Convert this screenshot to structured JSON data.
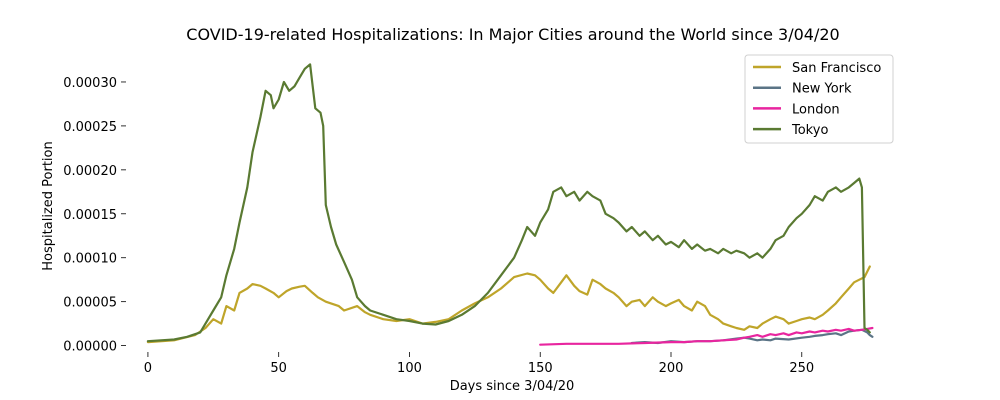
{
  "chart_data": {
    "type": "line",
    "title": "COVID-19-related Hospitalizations: In Major Cities around the World since 3/04/20",
    "xlabel": "Days since 3/04/20",
    "ylabel": "Hospitalized Portion",
    "xlim": [
      -8,
      278
    ],
    "ylim": [
      -5e-06,
      0.000325
    ],
    "xticks": [
      0,
      50,
      100,
      150,
      200,
      250
    ],
    "yticks": [
      0.0,
      5e-05,
      0.0001,
      0.00015,
      0.0002,
      0.00025,
      0.0003
    ],
    "ytick_labels": [
      "0.00000",
      "0.00005",
      "0.00010",
      "0.00015",
      "0.00020",
      "0.00025",
      "0.00030"
    ],
    "grid": false,
    "legend_position": "top-right",
    "series": [
      {
        "name": "San Francisco",
        "color": "#bfa52a",
        "points": [
          [
            0,
            4e-06
          ],
          [
            10,
            6e-06
          ],
          [
            18,
            1.2e-05
          ],
          [
            22,
            2e-05
          ],
          [
            25,
            3e-05
          ],
          [
            28,
            2.5e-05
          ],
          [
            30,
            4.5e-05
          ],
          [
            33,
            4e-05
          ],
          [
            35,
            6e-05
          ],
          [
            38,
            6.5e-05
          ],
          [
            40,
            7e-05
          ],
          [
            43,
            6.8e-05
          ],
          [
            45,
            6.5e-05
          ],
          [
            48,
            6e-05
          ],
          [
            50,
            5.5e-05
          ],
          [
            53,
            6.2e-05
          ],
          [
            55,
            6.5e-05
          ],
          [
            58,
            6.7e-05
          ],
          [
            60,
            6.8e-05
          ],
          [
            63,
            6e-05
          ],
          [
            65,
            5.5e-05
          ],
          [
            68,
            5e-05
          ],
          [
            70,
            4.8e-05
          ],
          [
            73,
            4.5e-05
          ],
          [
            75,
            4e-05
          ],
          [
            80,
            4.5e-05
          ],
          [
            83,
            3.8e-05
          ],
          [
            85,
            3.5e-05
          ],
          [
            90,
            3e-05
          ],
          [
            95,
            2.8e-05
          ],
          [
            100,
            3e-05
          ],
          [
            105,
            2.5e-05
          ],
          [
            110,
            2.7e-05
          ],
          [
            115,
            3e-05
          ],
          [
            120,
            4e-05
          ],
          [
            125,
            4.8e-05
          ],
          [
            130,
            5.5e-05
          ],
          [
            135,
            6.5e-05
          ],
          [
            140,
            7.8e-05
          ],
          [
            145,
            8.2e-05
          ],
          [
            148,
            8e-05
          ],
          [
            150,
            7.5e-05
          ],
          [
            153,
            6.5e-05
          ],
          [
            155,
            6e-05
          ],
          [
            158,
            7.2e-05
          ],
          [
            160,
            8e-05
          ],
          [
            163,
            6.8e-05
          ],
          [
            165,
            6.2e-05
          ],
          [
            168,
            5.8e-05
          ],
          [
            170,
            7.5e-05
          ],
          [
            173,
            7e-05
          ],
          [
            175,
            6.5e-05
          ],
          [
            178,
            6e-05
          ],
          [
            180,
            5.5e-05
          ],
          [
            183,
            4.5e-05
          ],
          [
            185,
            5e-05
          ],
          [
            188,
            5.2e-05
          ],
          [
            190,
            4.5e-05
          ],
          [
            193,
            5.5e-05
          ],
          [
            195,
            5e-05
          ],
          [
            198,
            4.5e-05
          ],
          [
            200,
            4.8e-05
          ],
          [
            203,
            5.2e-05
          ],
          [
            205,
            4.5e-05
          ],
          [
            208,
            4e-05
          ],
          [
            210,
            5e-05
          ],
          [
            213,
            4.5e-05
          ],
          [
            215,
            3.5e-05
          ],
          [
            218,
            3e-05
          ],
          [
            220,
            2.5e-05
          ],
          [
            223,
            2.2e-05
          ],
          [
            225,
            2e-05
          ],
          [
            228,
            1.8e-05
          ],
          [
            230,
            2.2e-05
          ],
          [
            233,
            2e-05
          ],
          [
            235,
            2.5e-05
          ],
          [
            238,
            3e-05
          ],
          [
            240,
            3.3e-05
          ],
          [
            243,
            3e-05
          ],
          [
            245,
            2.5e-05
          ],
          [
            248,
            2.8e-05
          ],
          [
            250,
            3e-05
          ],
          [
            253,
            3.2e-05
          ],
          [
            255,
            3e-05
          ],
          [
            258,
            3.5e-05
          ],
          [
            260,
            4e-05
          ],
          [
            263,
            4.8e-05
          ],
          [
            265,
            5.5e-05
          ],
          [
            268,
            6.5e-05
          ],
          [
            270,
            7.2e-05
          ],
          [
            272,
            7.5e-05
          ],
          [
            274,
            7.8e-05
          ],
          [
            276,
            9e-05
          ]
        ]
      },
      {
        "name": "New York",
        "color": "#5b7486",
        "points": [
          [
            185,
            3e-06
          ],
          [
            190,
            4e-06
          ],
          [
            195,
            3e-06
          ],
          [
            200,
            5e-06
          ],
          [
            205,
            4e-06
          ],
          [
            210,
            5e-06
          ],
          [
            215,
            5e-06
          ],
          [
            220,
            6e-06
          ],
          [
            225,
            8e-06
          ],
          [
            228,
            9e-06
          ],
          [
            230,
            8e-06
          ],
          [
            233,
            6e-06
          ],
          [
            235,
            7e-06
          ],
          [
            238,
            6e-06
          ],
          [
            240,
            8e-06
          ],
          [
            245,
            7e-06
          ],
          [
            250,
            9e-06
          ],
          [
            253,
            1e-05
          ],
          [
            255,
            1.1e-05
          ],
          [
            258,
            1.2e-05
          ],
          [
            260,
            1.3e-05
          ],
          [
            263,
            1.4e-05
          ],
          [
            265,
            1.2e-05
          ],
          [
            268,
            1.6e-05
          ],
          [
            270,
            1.7e-05
          ],
          [
            273,
            1.8e-05
          ],
          [
            275,
            1.5e-05
          ],
          [
            276,
            1.2e-05
          ],
          [
            277,
            1e-05
          ]
        ]
      },
      {
        "name": "London",
        "color": "#e8259f",
        "points": [
          [
            150,
            1e-06
          ],
          [
            160,
            2e-06
          ],
          [
            170,
            2e-06
          ],
          [
            180,
            2e-06
          ],
          [
            190,
            3e-06
          ],
          [
            200,
            4e-06
          ],
          [
            205,
            4e-06
          ],
          [
            210,
            5e-06
          ],
          [
            215,
            5e-06
          ],
          [
            220,
            6e-06
          ],
          [
            225,
            7e-06
          ],
          [
            228,
            9e-06
          ],
          [
            230,
            1e-05
          ],
          [
            233,
            1.2e-05
          ],
          [
            235,
            1e-05
          ],
          [
            238,
            1.3e-05
          ],
          [
            240,
            1.2e-05
          ],
          [
            243,
            1.4e-05
          ],
          [
            245,
            1.2e-05
          ],
          [
            248,
            1.5e-05
          ],
          [
            250,
            1.4e-05
          ],
          [
            253,
            1.6e-05
          ],
          [
            255,
            1.5e-05
          ],
          [
            258,
            1.7e-05
          ],
          [
            260,
            1.6e-05
          ],
          [
            263,
            1.8e-05
          ],
          [
            265,
            1.7e-05
          ],
          [
            268,
            1.9e-05
          ],
          [
            270,
            1.7e-05
          ],
          [
            273,
            1.8e-05
          ],
          [
            275,
            1.9e-05
          ],
          [
            277,
            2e-05
          ]
        ]
      },
      {
        "name": "Tokyo",
        "color": "#5a7a32",
        "points": [
          [
            0,
            5e-06
          ],
          [
            10,
            7e-06
          ],
          [
            15,
            1e-05
          ],
          [
            20,
            1.5e-05
          ],
          [
            22,
            2.5e-05
          ],
          [
            25,
            4e-05
          ],
          [
            28,
            5.5e-05
          ],
          [
            30,
            8e-05
          ],
          [
            33,
            0.00011
          ],
          [
            35,
            0.00014
          ],
          [
            38,
            0.00018
          ],
          [
            40,
            0.00022
          ],
          [
            43,
            0.00026
          ],
          [
            45,
            0.00029
          ],
          [
            47,
            0.000285
          ],
          [
            48,
            0.00027
          ],
          [
            50,
            0.00028
          ],
          [
            52,
            0.0003
          ],
          [
            54,
            0.00029
          ],
          [
            56,
            0.000295
          ],
          [
            58,
            0.000305
          ],
          [
            60,
            0.000315
          ],
          [
            62,
            0.00032
          ],
          [
            63,
            0.000295
          ],
          [
            64,
            0.00027
          ],
          [
            66,
            0.000265
          ],
          [
            67,
            0.00025
          ],
          [
            68,
            0.00016
          ],
          [
            70,
            0.000135
          ],
          [
            72,
            0.000115
          ],
          [
            75,
            9.5e-05
          ],
          [
            78,
            7.5e-05
          ],
          [
            80,
            5.5e-05
          ],
          [
            83,
            4.5e-05
          ],
          [
            85,
            4e-05
          ],
          [
            90,
            3.5e-05
          ],
          [
            95,
            3e-05
          ],
          [
            100,
            2.8e-05
          ],
          [
            105,
            2.5e-05
          ],
          [
            110,
            2.4e-05
          ],
          [
            115,
            2.8e-05
          ],
          [
            120,
            3.5e-05
          ],
          [
            125,
            4.5e-05
          ],
          [
            130,
            6e-05
          ],
          [
            135,
            8e-05
          ],
          [
            140,
            0.0001
          ],
          [
            143,
            0.00012
          ],
          [
            145,
            0.000135
          ],
          [
            148,
            0.000125
          ],
          [
            150,
            0.00014
          ],
          [
            153,
            0.000155
          ],
          [
            155,
            0.000175
          ],
          [
            158,
            0.00018
          ],
          [
            160,
            0.00017
          ],
          [
            163,
            0.000175
          ],
          [
            165,
            0.000165
          ],
          [
            168,
            0.000175
          ],
          [
            170,
            0.00017
          ],
          [
            173,
            0.000165
          ],
          [
            175,
            0.00015
          ],
          [
            178,
            0.000145
          ],
          [
            180,
            0.00014
          ],
          [
            183,
            0.00013
          ],
          [
            185,
            0.000135
          ],
          [
            188,
            0.000125
          ],
          [
            190,
            0.00013
          ],
          [
            193,
            0.00012
          ],
          [
            195,
            0.000125
          ],
          [
            198,
            0.000115
          ],
          [
            200,
            0.000118
          ],
          [
            203,
            0.000112
          ],
          [
            205,
            0.00012
          ],
          [
            208,
            0.00011
          ],
          [
            210,
            0.000115
          ],
          [
            213,
            0.000108
          ],
          [
            215,
            0.00011
          ],
          [
            218,
            0.000105
          ],
          [
            220,
            0.00011
          ],
          [
            223,
            0.000105
          ],
          [
            225,
            0.000108
          ],
          [
            228,
            0.000105
          ],
          [
            230,
            0.0001
          ],
          [
            233,
            0.000105
          ],
          [
            235,
            0.0001
          ],
          [
            238,
            0.00011
          ],
          [
            240,
            0.00012
          ],
          [
            243,
            0.000125
          ],
          [
            245,
            0.000135
          ],
          [
            248,
            0.000145
          ],
          [
            250,
            0.00015
          ],
          [
            253,
            0.00016
          ],
          [
            255,
            0.00017
          ],
          [
            258,
            0.000165
          ],
          [
            260,
            0.000175
          ],
          [
            263,
            0.00018
          ],
          [
            265,
            0.000175
          ],
          [
            268,
            0.00018
          ],
          [
            270,
            0.000185
          ],
          [
            272,
            0.00019
          ],
          [
            273,
            0.00018
          ],
          [
            274,
            2e-05
          ],
          [
            275,
            1.8e-05
          ],
          [
            276,
            1.5e-05
          ]
        ]
      }
    ]
  }
}
